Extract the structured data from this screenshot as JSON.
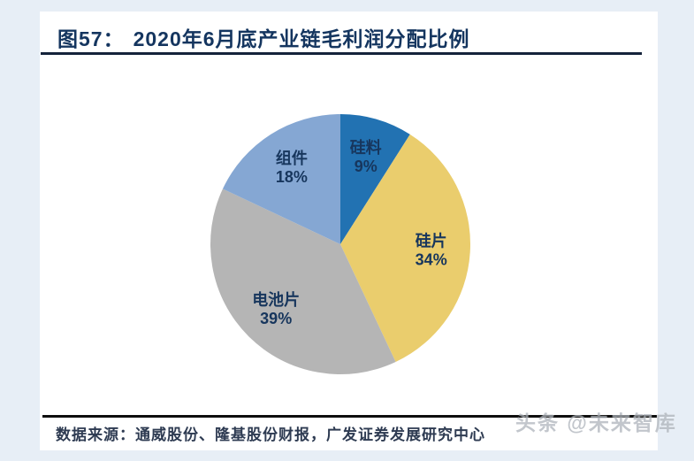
{
  "page": {
    "background_color": "#E7EEF6",
    "card_color": "#FFFFFF"
  },
  "header": {
    "figure_no": "图57：",
    "title": "2020年6月底产业链毛利润分配比例",
    "title_color": "#14355F"
  },
  "chart_data": {
    "type": "pie",
    "title": "2020年6月底产业链毛利润分配比例",
    "categories": [
      "硅料",
      "硅片",
      "电池片",
      "组件"
    ],
    "values": [
      9,
      34,
      39,
      18
    ],
    "unit": "%",
    "colors": [
      "#2272B2",
      "#EACD6D",
      "#B5B5B5",
      "#85A7D3"
    ],
    "label_color": "#17365D",
    "start_angle_deg": 0,
    "direction": "clockwise",
    "legend": "none",
    "labels_position": "inside"
  },
  "footer": {
    "source": "数据来源：通威股份、隆基股份财报，广发证券发展研究中心",
    "source_color": "#2E3B52"
  },
  "watermark": {
    "text": "头条 @未来智库",
    "color": "#AEB4BB"
  }
}
